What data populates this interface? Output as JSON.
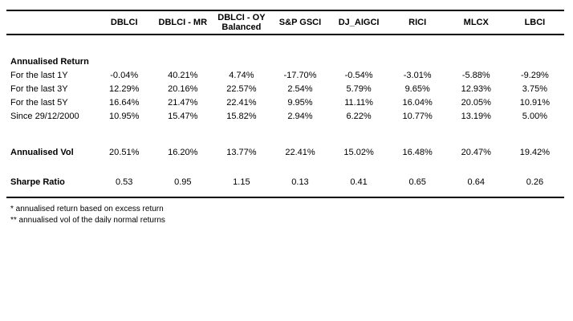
{
  "table": {
    "corner_label": "",
    "columns": [
      "DBLCI",
      "DBLCI - MR",
      "DBLCI - OY Balanced",
      "S&P GSCI",
      "DJ_AIGCI",
      "RICI",
      "MLCX",
      "LBCI"
    ],
    "rows": [
      {
        "type": "section",
        "label": "Annualised Return",
        "values": [
          "",
          "",
          "",
          "",
          "",
          "",
          "",
          ""
        ]
      },
      {
        "type": "data",
        "label": "For the last 1Y",
        "values": [
          "-0.04%",
          "40.21%",
          "4.74%",
          "-17.70%",
          "-0.54%",
          "-3.01%",
          "-5.88%",
          "-9.29%"
        ]
      },
      {
        "type": "data",
        "label": "For the last 3Y",
        "values": [
          "12.29%",
          "20.16%",
          "22.57%",
          "2.54%",
          "5.79%",
          "9.65%",
          "12.93%",
          "3.75%"
        ]
      },
      {
        "type": "data",
        "label": "For the last 5Y",
        "values": [
          "16.64%",
          "21.47%",
          "22.41%",
          "9.95%",
          "11.11%",
          "16.04%",
          "20.05%",
          "10.91%"
        ]
      },
      {
        "type": "data",
        "label": "Since 29/12/2000",
        "values": [
          "10.95%",
          "15.47%",
          "15.82%",
          "2.94%",
          "6.22%",
          "10.77%",
          "13.19%",
          "5.00%"
        ]
      },
      {
        "type": "spacer",
        "height": 28
      },
      {
        "type": "bold",
        "label": "Annualised Vol",
        "values": [
          "20.51%",
          "16.20%",
          "13.77%",
          "22.41%",
          "15.02%",
          "16.48%",
          "20.47%",
          "19.42%"
        ]
      },
      {
        "type": "spacer",
        "height": 19
      },
      {
        "type": "bold",
        "label": "Sharpe Ratio",
        "values": [
          "0.53",
          "0.95",
          "1.15",
          "0.13",
          "0.41",
          "0.65",
          "0.64",
          "0.26"
        ]
      },
      {
        "type": "spacer",
        "height": 10
      }
    ],
    "header_spacer_height": 25
  },
  "footnotes": [
    "* annualised return based on excess return",
    "** annualised vol of the daily normal returns"
  ],
  "colors": {
    "text": "#000000",
    "background": "#ffffff",
    "rule": "#000000"
  }
}
